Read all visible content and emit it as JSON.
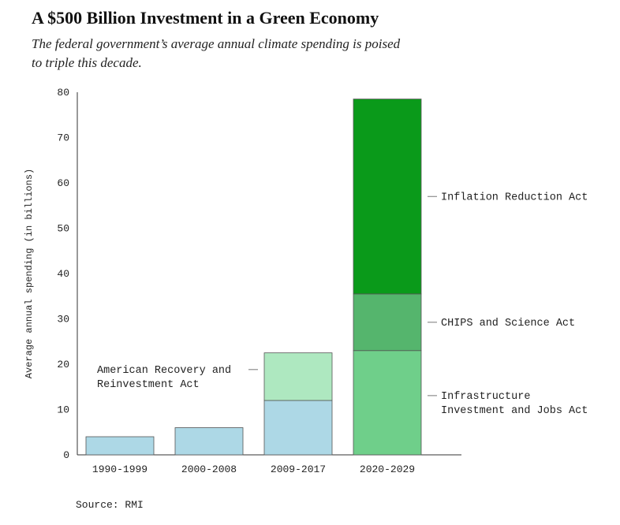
{
  "title": "A $500 Billion Investment in a Green Economy",
  "subtitle": "The federal government’s average annual climate spending is poised to triple this decade.",
  "source": "Source: RMI",
  "chart_data": {
    "type": "bar",
    "stacked": true,
    "categories": [
      "1990-1999",
      "2000-2008",
      "2009-2017",
      "2020-2029"
    ],
    "ylabel": "Average annual spending (in billions)",
    "xlabel": "",
    "ylim": [
      0,
      80
    ],
    "yticks": [
      0,
      10,
      20,
      30,
      40,
      50,
      60,
      70,
      80
    ],
    "grid": false,
    "series": [
      {
        "key": "base",
        "color": "#add8e6",
        "values": [
          4,
          6,
          12,
          0
        ]
      },
      {
        "key": "arra",
        "color": "#aee8c0",
        "values": [
          0,
          0,
          10.5,
          0
        ]
      },
      {
        "key": "iija",
        "color": "#6fcf8a",
        "values": [
          0,
          0,
          0,
          23
        ]
      },
      {
        "key": "chips",
        "color": "#55b56d",
        "values": [
          0,
          0,
          0,
          12.5
        ]
      },
      {
        "key": "ira",
        "color": "#0a9a1a",
        "values": [
          0,
          0,
          0,
          43
        ]
      }
    ],
    "annotations": [
      {
        "series": "arra",
        "side": "left",
        "lines": [
          "American Recovery and",
          "Reinvestment Act"
        ]
      },
      {
        "series": "ira",
        "side": "right",
        "lines": [
          "Inflation Reduction Act"
        ]
      },
      {
        "series": "chips",
        "side": "right",
        "lines": [
          "CHIPS and Science Act"
        ]
      },
      {
        "series": "iija",
        "side": "right",
        "lines": [
          "Infrastructure",
          "Investment and Jobs Act"
        ]
      }
    ]
  }
}
